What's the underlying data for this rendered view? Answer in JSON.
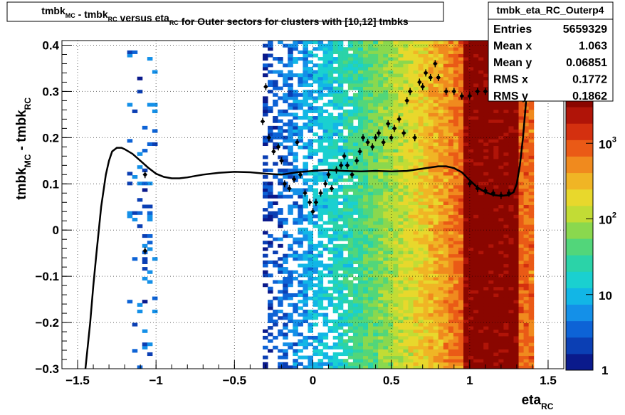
{
  "title_box": {
    "segments": [
      {
        "text": "tmbk",
        "sub": "MC"
      },
      {
        "text": " - tmbk",
        "sub": "RC"
      },
      {
        "text": " versus eta",
        "sub": "RC"
      },
      {
        "text": " for Outer sectors for clusters with [10,12] tmbks",
        "sub": ""
      }
    ]
  },
  "stats_box": {
    "name": "tmbk_eta_RC_Outerp4",
    "rows": [
      {
        "label": "Entries",
        "value": "5659329"
      },
      {
        "label": "Mean x",
        "value": "1.063"
      },
      {
        "label": "Mean y",
        "value": "0.06851"
      },
      {
        "label": "RMS x",
        "value": "0.1772"
      },
      {
        "label": "RMS y",
        "value": "0.1862"
      }
    ]
  },
  "chart_data": {
    "type": "heatmap",
    "xlabel": {
      "text": "eta",
      "sub": "RC"
    },
    "ylabel": {
      "text1": "tmbk",
      "sub1": "MC",
      "text2": " - tmbk",
      "sub2": "RC"
    },
    "xlim": [
      -1.6,
      1.6
    ],
    "ylim": [
      -0.3,
      0.41
    ],
    "x_ticks": [
      {
        "value": -1.5,
        "label": "−1.5"
      },
      {
        "value": -1,
        "label": "−1"
      },
      {
        "value": -0.5,
        "label": "−0.5"
      },
      {
        "value": 0,
        "label": "0"
      },
      {
        "value": 0.5,
        "label": "0.5"
      },
      {
        "value": 1,
        "label": "1"
      },
      {
        "value": 1.5,
        "label": "1.5"
      }
    ],
    "y_ticks": [
      {
        "value": -0.3,
        "label": "−0.3"
      },
      {
        "value": -0.2,
        "label": "−0.2"
      },
      {
        "value": -0.1,
        "label": "−0.1"
      },
      {
        "value": 0,
        "label": "0"
      },
      {
        "value": 0.1,
        "label": "0.1"
      },
      {
        "value": 0.2,
        "label": "0.2"
      },
      {
        "value": 0.3,
        "label": "0.3"
      },
      {
        "value": 0.4,
        "label": "0.4"
      }
    ],
    "grid": true,
    "z_scale": "log",
    "z_range": [
      1,
      5000
    ],
    "color_ticks": [
      {
        "value": 10,
        "label": "10"
      },
      {
        "value": 100,
        "label": "10",
        "sup": "2"
      },
      {
        "value": 1000,
        "label": "10",
        "sup": "3"
      }
    ],
    "colorbar_bottom_label": "1",
    "palette": [
      "#0a1a8c",
      "#0b3fb4",
      "#0d63d6",
      "#1490e8",
      "#12b6e6",
      "#1ad0d0",
      "#2bd3a8",
      "#52d67a",
      "#8ad84e",
      "#c2dc35",
      "#e8d82c",
      "#f0b525",
      "#f08a1e",
      "#ea5a16",
      "#d4300f",
      "#b01408",
      "#8a0600"
    ],
    "core_band": {
      "x_from": 0.95,
      "x_to": 1.3,
      "z": 5000
    },
    "profile_points": [
      {
        "x": -1.07,
        "y": 0.12
      },
      {
        "x": -1.07,
        "y": -0.045
      },
      {
        "x": -0.32,
        "y": 0.235
      },
      {
        "x": -0.3,
        "y": 0.31
      },
      {
        "x": -0.28,
        "y": 0.2
      },
      {
        "x": -0.25,
        "y": 0.17
      },
      {
        "x": -0.22,
        "y": 0.18
      },
      {
        "x": -0.2,
        "y": 0.15
      },
      {
        "x": -0.18,
        "y": 0.1
      },
      {
        "x": -0.15,
        "y": 0.09
      },
      {
        "x": -0.12,
        "y": 0.11
      },
      {
        "x": -0.1,
        "y": 0.19
      },
      {
        "x": -0.08,
        "y": 0.12
      },
      {
        "x": -0.05,
        "y": 0.08
      },
      {
        "x": -0.02,
        "y": 0.06
      },
      {
        "x": 0.0,
        "y": 0.04
      },
      {
        "x": 0.02,
        "y": 0.06
      },
      {
        "x": 0.05,
        "y": 0.08
      },
      {
        "x": 0.08,
        "y": 0.1
      },
      {
        "x": 0.1,
        "y": 0.12
      },
      {
        "x": 0.12,
        "y": 0.09
      },
      {
        "x": 0.15,
        "y": 0.13
      },
      {
        "x": 0.18,
        "y": 0.14
      },
      {
        "x": 0.2,
        "y": 0.16
      },
      {
        "x": 0.22,
        "y": 0.14
      },
      {
        "x": 0.25,
        "y": 0.12
      },
      {
        "x": 0.28,
        "y": 0.15
      },
      {
        "x": 0.3,
        "y": 0.17
      },
      {
        "x": 0.32,
        "y": 0.2
      },
      {
        "x": 0.35,
        "y": 0.19
      },
      {
        "x": 0.38,
        "y": 0.18
      },
      {
        "x": 0.4,
        "y": 0.2
      },
      {
        "x": 0.42,
        "y": 0.21
      },
      {
        "x": 0.45,
        "y": 0.19
      },
      {
        "x": 0.48,
        "y": 0.23
      },
      {
        "x": 0.5,
        "y": 0.2
      },
      {
        "x": 0.52,
        "y": 0.22
      },
      {
        "x": 0.55,
        "y": 0.24
      },
      {
        "x": 0.58,
        "y": 0.21
      },
      {
        "x": 0.6,
        "y": 0.28
      },
      {
        "x": 0.62,
        "y": 0.3
      },
      {
        "x": 0.65,
        "y": 0.2
      },
      {
        "x": 0.68,
        "y": 0.32
      },
      {
        "x": 0.7,
        "y": 0.31
      },
      {
        "x": 0.72,
        "y": 0.34
      },
      {
        "x": 0.75,
        "y": 0.33
      },
      {
        "x": 0.78,
        "y": 0.36
      },
      {
        "x": 0.8,
        "y": 0.33
      },
      {
        "x": 0.85,
        "y": 0.3
      },
      {
        "x": 0.9,
        "y": 0.3
      },
      {
        "x": 0.95,
        "y": 0.29
      },
      {
        "x": 1.0,
        "y": 0.29
      },
      {
        "x": 1.05,
        "y": 0.3
      },
      {
        "x": 1.1,
        "y": 0.3
      },
      {
        "x": 1.15,
        "y": 0.31
      },
      {
        "x": 1.2,
        "y": 0.32
      },
      {
        "x": 1.25,
        "y": 0.33
      },
      {
        "x": 1.3,
        "y": 0.34
      },
      {
        "x": 1.0,
        "y": 0.1
      },
      {
        "x": 1.05,
        "y": 0.09
      },
      {
        "x": 1.1,
        "y": 0.085
      },
      {
        "x": 1.15,
        "y": 0.08
      },
      {
        "x": 1.2,
        "y": 0.075
      },
      {
        "x": 1.25,
        "y": 0.08
      }
    ],
    "fit_curve": {
      "x": [
        -1.45,
        -1.42,
        -1.4,
        -1.38,
        -1.35,
        -1.32,
        -1.3,
        -1.28,
        -1.25,
        -1.22,
        -1.2,
        -1.15,
        -1.1,
        -1.05,
        -1.0,
        -0.95,
        -0.9,
        -0.85,
        -0.8,
        -0.75,
        -0.7,
        -0.6,
        -0.5,
        -0.4,
        -0.3,
        -0.2,
        -0.1,
        0.0,
        0.1,
        0.2,
        0.3,
        0.4,
        0.5,
        0.6,
        0.7,
        0.8,
        0.85,
        0.9,
        0.95,
        1.0,
        1.05,
        1.1,
        1.15,
        1.2,
        1.25,
        1.28,
        1.3,
        1.32,
        1.34,
        1.36,
        1.38,
        1.4
      ],
      "y": [
        -0.3,
        -0.2,
        -0.12,
        -0.05,
        0.05,
        0.12,
        0.15,
        0.17,
        0.178,
        0.178,
        0.175,
        0.165,
        0.15,
        0.135,
        0.122,
        0.115,
        0.112,
        0.112,
        0.114,
        0.117,
        0.12,
        0.124,
        0.126,
        0.125,
        0.122,
        0.12,
        0.125,
        0.128,
        0.13,
        0.128,
        0.127,
        0.128,
        0.127,
        0.128,
        0.133,
        0.138,
        0.138,
        0.134,
        0.125,
        0.108,
        0.092,
        0.082,
        0.076,
        0.074,
        0.076,
        0.082,
        0.1,
        0.14,
        0.2,
        0.28,
        0.36,
        0.42
      ]
    }
  }
}
